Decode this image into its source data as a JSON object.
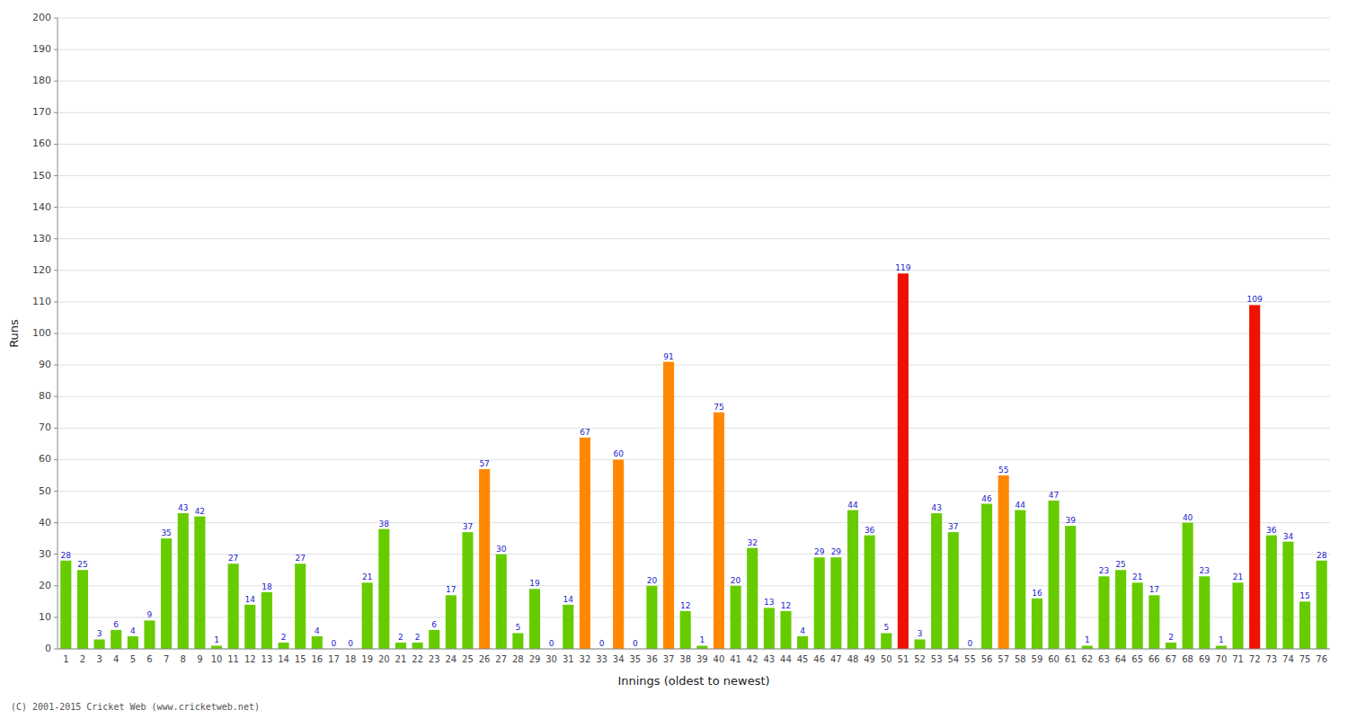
{
  "chart_data": {
    "type": "bar",
    "xlabel": "Innings (oldest to newest)",
    "ylabel": "Runs",
    "categories": [
      "1",
      "2",
      "3",
      "4",
      "5",
      "6",
      "7",
      "8",
      "9",
      "10",
      "11",
      "12",
      "13",
      "14",
      "15",
      "16",
      "17",
      "18",
      "19",
      "20",
      "21",
      "22",
      "23",
      "24",
      "25",
      "26",
      "27",
      "28",
      "29",
      "30",
      "31",
      "32",
      "33",
      "34",
      "35",
      "36",
      "37",
      "38",
      "39",
      "40",
      "41",
      "42",
      "43",
      "44",
      "45",
      "46",
      "47",
      "48",
      "49",
      "50",
      "51",
      "52",
      "53",
      "54",
      "55",
      "56",
      "57",
      "58",
      "59",
      "60",
      "61",
      "62",
      "63",
      "64",
      "65",
      "66",
      "67",
      "68",
      "69",
      "70",
      "71",
      "72",
      "73",
      "74",
      "75",
      "76"
    ],
    "values": [
      28,
      25,
      3,
      6,
      4,
      9,
      35,
      43,
      42,
      1,
      27,
      14,
      18,
      2,
      27,
      4,
      0,
      0,
      21,
      38,
      2,
      2,
      6,
      17,
      37,
      57,
      30,
      5,
      19,
      0,
      14,
      67,
      0,
      60,
      0,
      20,
      91,
      12,
      1,
      75,
      20,
      32,
      13,
      12,
      4,
      29,
      29,
      44,
      36,
      5,
      119,
      3,
      43,
      37,
      0,
      46,
      55,
      44,
      16,
      47,
      39,
      1,
      23,
      25,
      21,
      17,
      2,
      40,
      23,
      1,
      21,
      109,
      36,
      34,
      15,
      28
    ],
    "colors": [
      "#66cc00",
      "#66cc00",
      "#66cc00",
      "#66cc00",
      "#66cc00",
      "#66cc00",
      "#66cc00",
      "#66cc00",
      "#66cc00",
      "#66cc00",
      "#66cc00",
      "#66cc00",
      "#66cc00",
      "#66cc00",
      "#66cc00",
      "#66cc00",
      "#66cc00",
      "#66cc00",
      "#66cc00",
      "#66cc00",
      "#66cc00",
      "#66cc00",
      "#66cc00",
      "#66cc00",
      "#66cc00",
      "#ff8800",
      "#66cc00",
      "#66cc00",
      "#66cc00",
      "#66cc00",
      "#66cc00",
      "#ff8800",
      "#66cc00",
      "#ff8800",
      "#66cc00",
      "#66cc00",
      "#ff8800",
      "#66cc00",
      "#66cc00",
      "#ff8800",
      "#66cc00",
      "#66cc00",
      "#66cc00",
      "#66cc00",
      "#66cc00",
      "#66cc00",
      "#66cc00",
      "#66cc00",
      "#66cc00",
      "#66cc00",
      "#ee1100",
      "#66cc00",
      "#66cc00",
      "#66cc00",
      "#66cc00",
      "#66cc00",
      "#ff8800",
      "#66cc00",
      "#66cc00",
      "#66cc00",
      "#66cc00",
      "#66cc00",
      "#66cc00",
      "#66cc00",
      "#66cc00",
      "#66cc00",
      "#66cc00",
      "#66cc00",
      "#66cc00",
      "#66cc00",
      "#66cc00",
      "#ee1100",
      "#66cc00",
      "#66cc00",
      "#66cc00",
      "#66cc00"
    ],
    "ylim": [
      0,
      200
    ],
    "yticks": [
      0,
      10,
      20,
      30,
      40,
      50,
      60,
      70,
      80,
      90,
      100,
      110,
      120,
      130,
      140,
      150,
      160,
      170,
      180,
      190,
      200
    ],
    "grid": true,
    "data_labels": true,
    "annotations": [
      "(C) 2001-2015 Cricket Web (www.cricketweb.net)"
    ]
  }
}
